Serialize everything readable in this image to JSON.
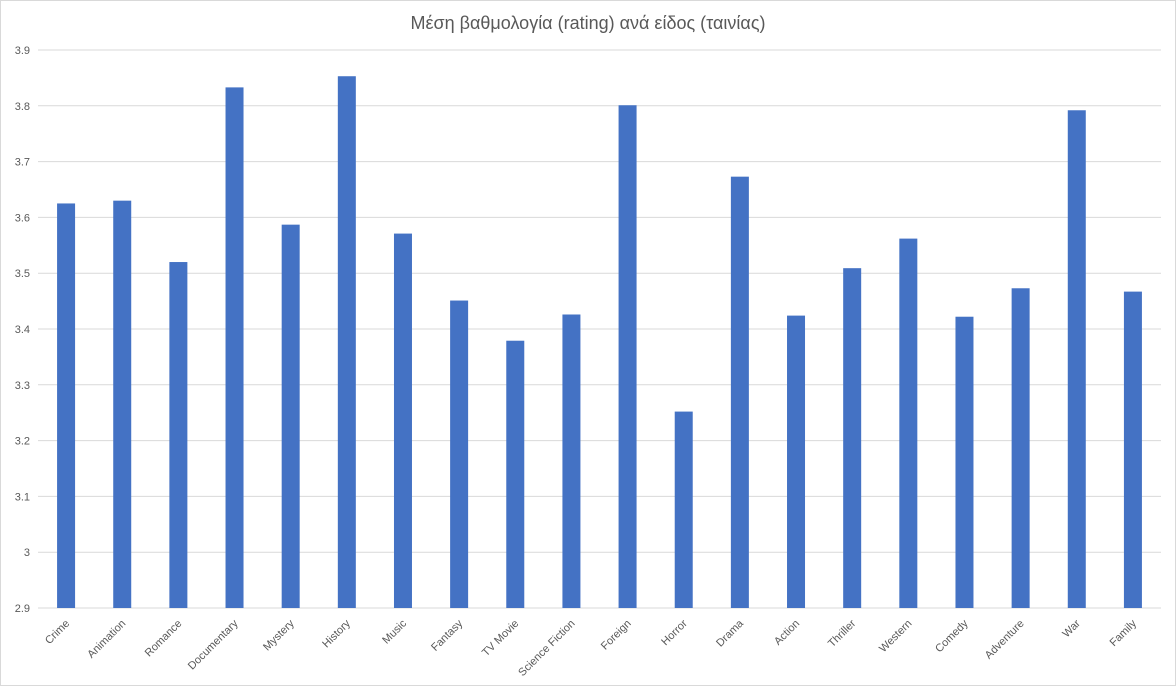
{
  "chart_data": {
    "type": "bar",
    "title": "Μέση βαθμολογία (rating) ανά είδος (ταινίας)",
    "categories": [
      "Crime",
      "Animation",
      "Romance",
      "Documentary",
      "Mystery",
      "History",
      "Music",
      "Fantasy",
      "TV Movie",
      "Science Fiction",
      "Foreign",
      "Horror",
      "Drama",
      "Action",
      "Thriller",
      "Western",
      "Comedy",
      "Adventure",
      "War",
      "Family"
    ],
    "values": [
      3.625,
      3.63,
      3.52,
      3.833,
      3.587,
      3.853,
      3.571,
      3.451,
      3.379,
      3.426,
      3.801,
      3.252,
      3.673,
      3.424,
      3.509,
      3.562,
      3.422,
      3.473,
      3.792,
      3.467
    ],
    "ylim": [
      2.9,
      3.9
    ],
    "yticks": [
      "2.9",
      "3",
      "3.1",
      "3.2",
      "3.3",
      "3.4",
      "3.5",
      "3.6",
      "3.7",
      "3.8",
      "3.9"
    ],
    "grid": true,
    "bar_color": "#4472c4",
    "grid_color": "#d9d9d9",
    "xlabel": "",
    "ylabel": ""
  }
}
